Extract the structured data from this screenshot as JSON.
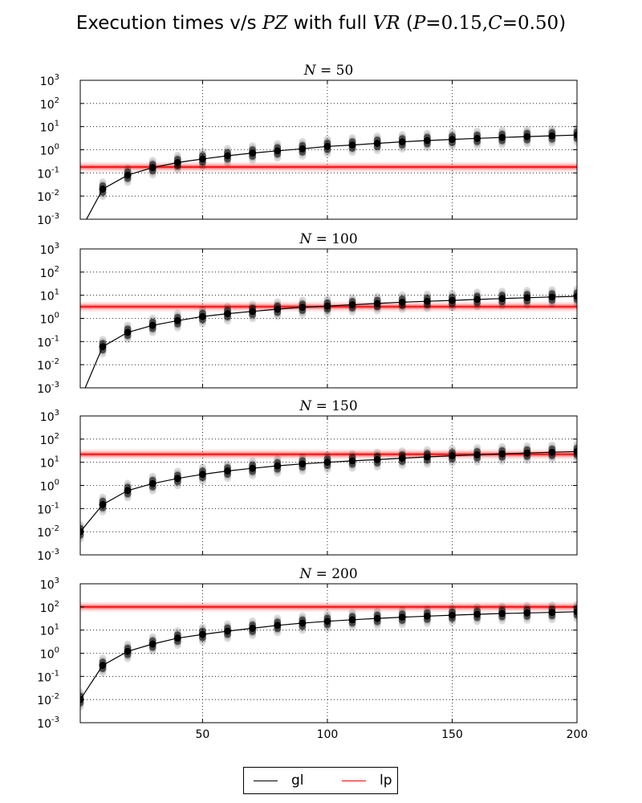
{
  "title": {
    "prefix": "Execution times v/s ",
    "var1": "PZ",
    "middle": " with full ",
    "var2": "VR",
    "open": " (",
    "p_sym": "P",
    "p_val": "=0.15,",
    "c_sym": "C",
    "c_val": "=0.50",
    "close": ")"
  },
  "colors": {
    "gl": "#000000",
    "lp": "#ff0000",
    "grid": "#000000"
  },
  "chart_data": {
    "type": "line",
    "x_axis": {
      "ticks": [
        50,
        100,
        150,
        200
      ],
      "xlim": [
        1,
        200
      ]
    },
    "y_axis": {
      "scale": "log",
      "ylim": [
        0.001,
        1000
      ],
      "tick_labels": [
        "10-3",
        "10-2",
        "10-1",
        "100",
        "101",
        "102",
        "103"
      ],
      "tick_bases": [
        "10",
        "10",
        "10",
        "10",
        "10",
        "10",
        "10"
      ],
      "tick_exps": [
        "-3",
        "-2",
        "-1",
        "0",
        "1",
        "2",
        "3"
      ]
    },
    "grid": true,
    "legend": {
      "placement": "bottom-center",
      "entries": [
        {
          "label": "gl",
          "color": "#000000"
        },
        {
          "label": "lp",
          "color": "#ff0000"
        }
      ]
    },
    "x": [
      1,
      10,
      20,
      30,
      40,
      50,
      60,
      70,
      80,
      90,
      100,
      110,
      120,
      130,
      140,
      150,
      160,
      170,
      180,
      190,
      200
    ],
    "panels": [
      {
        "title": "N = 50",
        "series": [
          {
            "name": "gl",
            "values": [
              0.0001,
              0.02,
              0.08,
              0.17,
              0.28,
              0.4,
              0.55,
              0.72,
              0.9,
              1.1,
              1.4,
              1.6,
              1.9,
              2.2,
              2.5,
              2.8,
              3.1,
              3.4,
              3.7,
              4.0,
              4.3
            ]
          },
          {
            "name": "lp",
            "value": 0.18
          }
        ]
      },
      {
        "title": "N = 100",
        "series": [
          {
            "name": "gl",
            "values": [
              0.0001,
              0.06,
              0.25,
              0.5,
              0.8,
              1.2,
              1.6,
              2.0,
              2.5,
              3.0,
              3.4,
              3.9,
              4.4,
              5.0,
              5.5,
              6.0,
              6.6,
              7.2,
              7.8,
              8.4,
              9.0
            ]
          },
          {
            "name": "lp",
            "value": 3.2
          }
        ]
      },
      {
        "title": "N = 150",
        "series": [
          {
            "name": "gl",
            "values": [
              0.01,
              0.15,
              0.6,
              1.2,
              2.0,
              3.0,
              4.2,
              5.5,
              7.0,
              8.5,
              10,
              11.5,
              13,
              15,
              17,
              19,
              21,
              23,
              25,
              27,
              29
            ]
          },
          {
            "name": "lp",
            "value": 22
          }
        ]
      },
      {
        "title": "N = 200",
        "series": [
          {
            "name": "gl",
            "values": [
              0.01,
              0.3,
              1.2,
              2.5,
              4.5,
              6.5,
              9,
              12,
              16,
              20,
              24,
              28,
              32,
              36,
              40,
              44,
              48,
              52,
              55,
              58,
              62
            ]
          },
          {
            "name": "lp",
            "value": 100
          }
        ]
      }
    ]
  }
}
